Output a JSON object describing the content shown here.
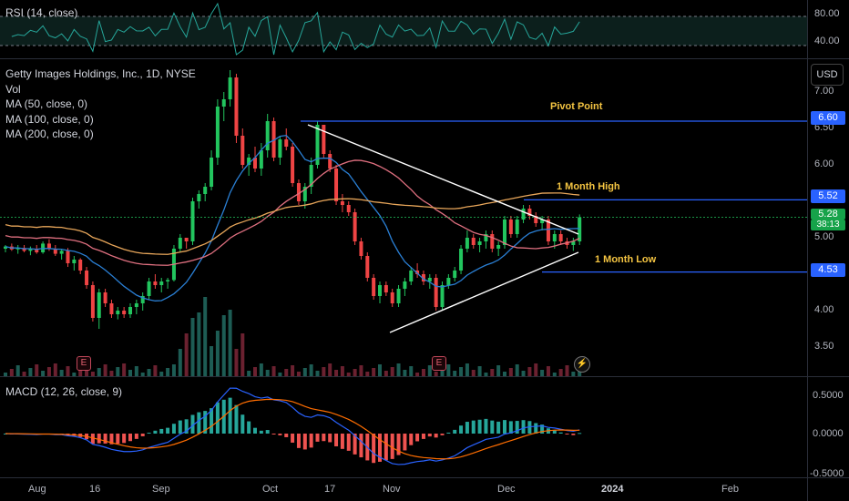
{
  "rsi": {
    "legend": "RSI (14, close)",
    "levels": [
      "80.00",
      "40.00"
    ],
    "line_color": "#26a69a"
  },
  "main": {
    "legend": [
      "Getty Images Holdings, Inc., 1D, NYSE",
      "Vol",
      "MA (50, close, 0)",
      "MA (100, close, 0)",
      "MA (200, close, 0)"
    ],
    "currency": "USD",
    "price_ticks": [
      "7.00",
      "6.50",
      "6.00",
      "5.50",
      "5.00",
      "4.50",
      "4.00",
      "3.50"
    ],
    "annotations": {
      "pivot": "Pivot Point",
      "high": "1 Month High",
      "low": "1 Month Low"
    },
    "price_tags": {
      "pivot": "6.60",
      "high": "5.52",
      "current": "5.28",
      "countdown": "38:13",
      "low": "4.53"
    },
    "earnings_badge": "E",
    "colors": {
      "up": "#22c55e",
      "down": "#ef4444",
      "ma50": "#2a7fd4",
      "ma100": "#e07080",
      "ma200": "#e8a65a",
      "level": "#2962ff"
    }
  },
  "macd": {
    "legend": "MACD (12, 26, close, 9)",
    "ticks": [
      "0.5000",
      "0.0000",
      "-0.5000"
    ]
  },
  "time_axis": [
    "Aug",
    "16",
    "Sep",
    "Oct",
    "17",
    "Nov",
    "Dec",
    "2024",
    "Feb"
  ],
  "chart_data": {
    "type": "candlestick",
    "title": "Getty Images Holdings, Inc., 1D, NYSE",
    "y_range": [
      3.2,
      7.2
    ],
    "candles": [
      [
        4.85,
        4.9,
        4.8,
        4.88
      ],
      [
        4.88,
        4.92,
        4.82,
        4.84
      ],
      [
        4.84,
        4.9,
        4.78,
        4.86
      ],
      [
        4.86,
        4.9,
        4.8,
        4.82
      ],
      [
        4.82,
        4.88,
        4.76,
        4.85
      ],
      [
        4.85,
        4.9,
        4.78,
        4.8
      ],
      [
        4.8,
        4.95,
        4.78,
        4.92
      ],
      [
        4.92,
        4.98,
        4.82,
        4.85
      ],
      [
        4.85,
        4.9,
        4.75,
        4.78
      ],
      [
        4.78,
        4.85,
        4.7,
        4.82
      ],
      [
        4.82,
        4.86,
        4.6,
        4.65
      ],
      [
        4.65,
        4.75,
        4.55,
        4.7
      ],
      [
        4.7,
        4.72,
        4.5,
        4.55
      ],
      [
        4.55,
        4.6,
        4.3,
        4.35
      ],
      [
        4.35,
        4.4,
        3.85,
        3.9
      ],
      [
        3.9,
        4.3,
        3.75,
        4.25
      ],
      [
        4.25,
        4.3,
        4.05,
        4.1
      ],
      [
        4.1,
        4.15,
        3.9,
        3.95
      ],
      [
        3.95,
        4.05,
        3.88,
        4.0
      ],
      [
        4.0,
        4.05,
        3.9,
        3.95
      ],
      [
        3.95,
        4.1,
        3.9,
        4.05
      ],
      [
        4.05,
        4.15,
        3.95,
        4.1
      ],
      [
        4.1,
        4.25,
        4.0,
        4.2
      ],
      [
        4.2,
        4.45,
        4.15,
        4.4
      ],
      [
        4.4,
        4.5,
        4.3,
        4.35
      ],
      [
        4.35,
        4.45,
        4.25,
        4.4
      ],
      [
        4.4,
        4.45,
        4.3,
        4.42
      ],
      [
        4.42,
        4.9,
        4.4,
        4.85
      ],
      [
        4.85,
        5.05,
        4.8,
        5.0
      ],
      [
        5.0,
        5.0,
        4.85,
        4.95
      ],
      [
        4.95,
        5.55,
        4.9,
        5.5
      ],
      [
        5.5,
        5.65,
        5.4,
        5.6
      ],
      [
        5.6,
        5.75,
        5.5,
        5.7
      ],
      [
        5.7,
        6.2,
        5.65,
        6.1
      ],
      [
        6.1,
        6.9,
        6.0,
        6.8
      ],
      [
        6.8,
        7.0,
        6.6,
        6.9
      ],
      [
        6.9,
        7.3,
        6.8,
        7.2
      ],
      [
        7.2,
        7.25,
        6.3,
        6.4
      ],
      [
        6.4,
        6.5,
        5.95,
        6.0
      ],
      [
        6.0,
        6.15,
        5.85,
        6.1
      ],
      [
        6.1,
        6.25,
        5.9,
        5.95
      ],
      [
        5.95,
        6.3,
        5.85,
        6.2
      ],
      [
        6.2,
        6.7,
        6.1,
        6.6
      ],
      [
        6.6,
        6.65,
        6.05,
        6.1
      ],
      [
        6.1,
        6.4,
        6.0,
        6.35
      ],
      [
        6.35,
        6.5,
        6.2,
        6.25
      ],
      [
        6.25,
        6.3,
        5.7,
        5.75
      ],
      [
        5.75,
        5.8,
        5.45,
        5.5
      ],
      [
        5.5,
        5.75,
        5.4,
        5.7
      ],
      [
        5.7,
        6.1,
        5.6,
        6.0
      ],
      [
        6.0,
        6.6,
        5.95,
        6.55
      ],
      [
        6.55,
        6.55,
        6.1,
        6.15
      ],
      [
        6.15,
        6.2,
        5.9,
        5.95
      ],
      [
        5.95,
        6.0,
        5.45,
        5.5
      ],
      [
        5.5,
        5.6,
        5.35,
        5.45
      ],
      [
        5.45,
        5.5,
        5.3,
        5.35
      ],
      [
        5.35,
        5.4,
        4.9,
        4.95
      ],
      [
        4.95,
        5.0,
        4.7,
        4.75
      ],
      [
        4.75,
        4.8,
        4.4,
        4.45
      ],
      [
        4.45,
        4.5,
        4.15,
        4.2
      ],
      [
        4.2,
        4.4,
        4.1,
        4.35
      ],
      [
        4.35,
        4.4,
        4.2,
        4.25
      ],
      [
        4.25,
        4.3,
        4.05,
        4.1
      ],
      [
        4.1,
        4.35,
        4.05,
        4.3
      ],
      [
        4.3,
        4.45,
        4.2,
        4.4
      ],
      [
        4.4,
        4.6,
        4.35,
        4.55
      ],
      [
        4.55,
        4.65,
        4.45,
        4.5
      ],
      [
        4.5,
        4.55,
        4.35,
        4.4
      ],
      [
        4.4,
        4.5,
        4.3,
        4.45
      ],
      [
        4.45,
        4.5,
        4.0,
        4.05
      ],
      [
        4.05,
        4.4,
        4.0,
        4.35
      ],
      [
        4.35,
        4.5,
        4.3,
        4.45
      ],
      [
        4.45,
        4.6,
        4.4,
        4.55
      ],
      [
        4.55,
        4.9,
        4.5,
        4.85
      ],
      [
        4.85,
        5.1,
        4.8,
        5.0
      ],
      [
        5.0,
        5.05,
        4.85,
        4.9
      ],
      [
        4.9,
        5.0,
        4.8,
        4.95
      ],
      [
        4.95,
        5.1,
        4.85,
        5.05
      ],
      [
        5.05,
        5.1,
        4.8,
        4.85
      ],
      [
        4.85,
        4.95,
        4.75,
        4.9
      ],
      [
        4.9,
        5.3,
        4.85,
        5.25
      ],
      [
        5.25,
        5.3,
        5.0,
        5.05
      ],
      [
        5.05,
        5.3,
        5.0,
        5.25
      ],
      [
        5.25,
        5.45,
        5.2,
        5.4
      ],
      [
        5.4,
        5.45,
        5.25,
        5.3
      ],
      [
        5.3,
        5.35,
        5.15,
        5.2
      ],
      [
        5.2,
        5.3,
        5.1,
        5.25
      ],
      [
        5.25,
        5.3,
        4.9,
        4.95
      ],
      [
        4.95,
        5.1,
        4.85,
        5.05
      ],
      [
        5.05,
        5.1,
        4.9,
        4.95
      ],
      [
        4.95,
        5.0,
        4.85,
        4.9
      ],
      [
        4.9,
        5.0,
        4.82,
        4.95
      ],
      [
        4.95,
        5.32,
        4.9,
        5.28
      ]
    ],
    "levels": {
      "pivot": 6.6,
      "month_high": 5.52,
      "month_low": 4.53
    }
  }
}
